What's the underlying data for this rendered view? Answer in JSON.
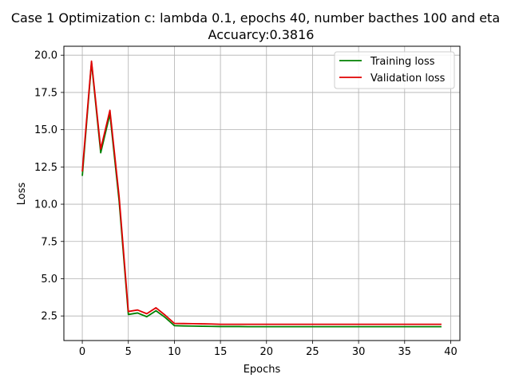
{
  "chart_data": {
    "type": "line",
    "title_line1": "Case 1 Optimization c: lambda 0.1, epochs 40, number bacthes 100 and eta",
    "title_line2": "Accuarcy:0.3816",
    "xlabel": "Epochs",
    "ylabel": "Loss",
    "xlim": [
      -2,
      41
    ],
    "ylim": [
      0.85,
      20.6
    ],
    "xticks": [
      0,
      5,
      10,
      15,
      20,
      25,
      30,
      35,
      40
    ],
    "xtick_labels": [
      "0",
      "5",
      "10",
      "15",
      "20",
      "25",
      "30",
      "35",
      "40"
    ],
    "yticks": [
      2.5,
      5.0,
      7.5,
      10.0,
      12.5,
      15.0,
      17.5,
      20.0
    ],
    "ytick_labels": [
      "2.5",
      "5.0",
      "7.5",
      "10.0",
      "12.5",
      "15.0",
      "17.5",
      "20.0"
    ],
    "grid": true,
    "legend_position": "top-right",
    "x": [
      0,
      1,
      2,
      3,
      4,
      5,
      6,
      7,
      8,
      9,
      10,
      11,
      12,
      13,
      14,
      15,
      16,
      17,
      18,
      19,
      20,
      21,
      22,
      23,
      24,
      25,
      26,
      27,
      28,
      29,
      30,
      31,
      32,
      33,
      34,
      35,
      36,
      37,
      38,
      39
    ],
    "series": [
      {
        "name": "Training loss",
        "color": "#008000",
        "values": [
          11.9,
          19.5,
          13.45,
          16.05,
          10.2,
          2.6,
          2.7,
          2.45,
          2.85,
          2.4,
          1.85,
          1.83,
          1.82,
          1.81,
          1.8,
          1.79,
          1.79,
          1.79,
          1.78,
          1.78,
          1.78,
          1.78,
          1.78,
          1.78,
          1.78,
          1.78,
          1.78,
          1.78,
          1.78,
          1.78,
          1.78,
          1.78,
          1.78,
          1.78,
          1.78,
          1.78,
          1.78,
          1.78,
          1.78,
          1.78
        ]
      },
      {
        "name": "Validation loss",
        "color": "#e00000",
        "values": [
          12.2,
          19.6,
          13.7,
          16.3,
          10.5,
          2.8,
          2.9,
          2.65,
          3.05,
          2.55,
          2.0,
          1.99,
          1.98,
          1.97,
          1.96,
          1.94,
          1.94,
          1.94,
          1.94,
          1.94,
          1.94,
          1.94,
          1.94,
          1.94,
          1.94,
          1.94,
          1.94,
          1.94,
          1.94,
          1.94,
          1.94,
          1.94,
          1.94,
          1.94,
          1.94,
          1.94,
          1.94,
          1.94,
          1.94,
          1.94
        ]
      }
    ]
  }
}
